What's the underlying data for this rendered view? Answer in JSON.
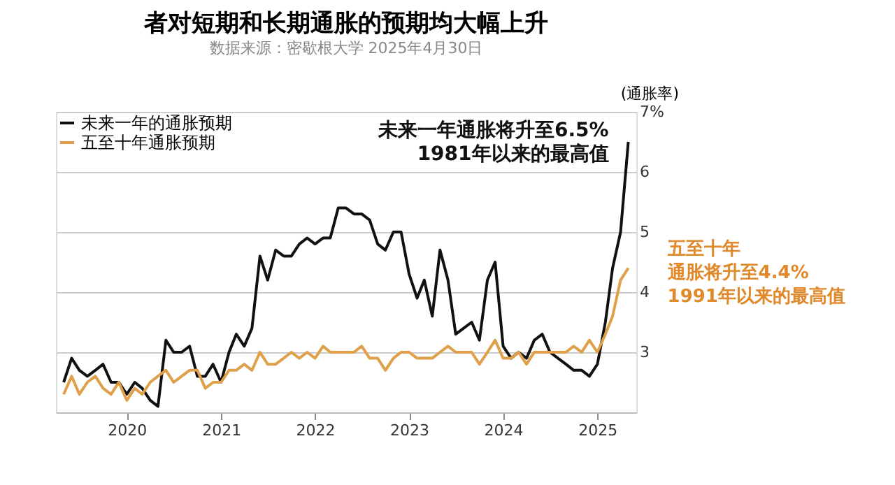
{
  "chart_data": {
    "type": "line",
    "title": "者对短期和长期通胀的预期均大幅上升",
    "subtitle": "数据来源：密歇根大学  2025年4月30日",
    "ylabel": "(通胀率)",
    "x": [
      "2019-05",
      "2019-06",
      "2019-07",
      "2019-08",
      "2019-09",
      "2019-10",
      "2019-11",
      "2019-12",
      "2020-01",
      "2020-02",
      "2020-03",
      "2020-04",
      "2020-05",
      "2020-06",
      "2020-07",
      "2020-08",
      "2020-09",
      "2020-10",
      "2020-11",
      "2020-12",
      "2021-01",
      "2021-02",
      "2021-03",
      "2021-04",
      "2021-05",
      "2021-06",
      "2021-07",
      "2021-08",
      "2021-09",
      "2021-10",
      "2021-11",
      "2021-12",
      "2022-01",
      "2022-02",
      "2022-03",
      "2022-04",
      "2022-05",
      "2022-06",
      "2022-07",
      "2022-08",
      "2022-09",
      "2022-10",
      "2022-11",
      "2022-12",
      "2023-01",
      "2023-02",
      "2023-03",
      "2023-04",
      "2023-05",
      "2023-06",
      "2023-07",
      "2023-08",
      "2023-09",
      "2023-10",
      "2023-11",
      "2023-12",
      "2024-01",
      "2024-02",
      "2024-03",
      "2024-04",
      "2024-05",
      "2024-06",
      "2024-07",
      "2024-08",
      "2024-09",
      "2024-10",
      "2024-11",
      "2024-12",
      "2025-01",
      "2025-02",
      "2025-03",
      "2025-04",
      "2025-05"
    ],
    "series": [
      {
        "name": "未来一年的通胀预期",
        "color": "#111111",
        "values": [
          2.5,
          2.9,
          2.7,
          2.6,
          2.7,
          2.8,
          2.5,
          2.5,
          2.3,
          2.5,
          2.4,
          2.2,
          2.1,
          3.2,
          3.0,
          3.0,
          3.1,
          2.6,
          2.6,
          2.8,
          2.5,
          3.0,
          3.3,
          3.1,
          3.4,
          4.6,
          4.2,
          4.7,
          4.6,
          4.6,
          4.8,
          4.9,
          4.8,
          4.9,
          4.9,
          5.4,
          5.4,
          5.3,
          5.3,
          5.2,
          4.8,
          4.7,
          5.0,
          5.0,
          4.3,
          3.9,
          4.2,
          3.6,
          4.7,
          4.2,
          3.3,
          3.4,
          3.5,
          3.2,
          4.2,
          4.5,
          3.1,
          2.9,
          3.0,
          2.9,
          3.2,
          3.3,
          3.0,
          2.9,
          2.8,
          2.7,
          2.7,
          2.6,
          2.8,
          3.5,
          4.4,
          5.0,
          6.5
        ]
      },
      {
        "name": "五至十年通胀预期",
        "color": "#e0a04a",
        "values": [
          2.3,
          2.6,
          2.3,
          2.5,
          2.6,
          2.4,
          2.3,
          2.5,
          2.2,
          2.4,
          2.3,
          2.5,
          2.6,
          2.7,
          2.5,
          2.6,
          2.7,
          2.7,
          2.4,
          2.5,
          2.5,
          2.7,
          2.7,
          2.8,
          2.7,
          3.0,
          2.8,
          2.8,
          2.9,
          3.0,
          2.9,
          3.0,
          2.9,
          3.1,
          3.0,
          3.0,
          3.0,
          3.0,
          3.1,
          2.9,
          2.9,
          2.7,
          2.9,
          3.0,
          3.0,
          2.9,
          2.9,
          2.9,
          3.0,
          3.1,
          3.0,
          3.0,
          3.0,
          2.8,
          3.0,
          3.2,
          2.9,
          2.9,
          3.0,
          2.8,
          3.0,
          3.0,
          3.0,
          3.0,
          3.0,
          3.1,
          3.0,
          3.2,
          3.0,
          3.3,
          3.6,
          4.2,
          4.4
        ]
      }
    ],
    "xlim": [
      "2019-04",
      "2025-06"
    ],
    "xticks": [
      "2020",
      "2021",
      "2022",
      "2023",
      "2024",
      "2025"
    ],
    "ylim": [
      2,
      7
    ],
    "yticks": [
      3,
      4,
      5,
      6,
      {
        "value": 7,
        "label": "7%"
      }
    ],
    "grid": "y",
    "legend": "top left",
    "marker": "none",
    "line_style": "solid",
    "annotations": [
      {
        "text": "未来一年通胀将升至6.5%",
        "x": "2025-05",
        "y": 6.5
      },
      {
        "text": "1981年以来的最高值",
        "x": "2025-05",
        "y": 6.5
      },
      {
        "text": "五至十年",
        "x": "2025-05",
        "y": 4.4
      },
      {
        "text": "通胀将升至4.4%",
        "x": "2025-05",
        "y": 4.4
      },
      {
        "text": "1991年以来的最高值",
        "x": "2025-05",
        "y": 4.4
      }
    ]
  }
}
